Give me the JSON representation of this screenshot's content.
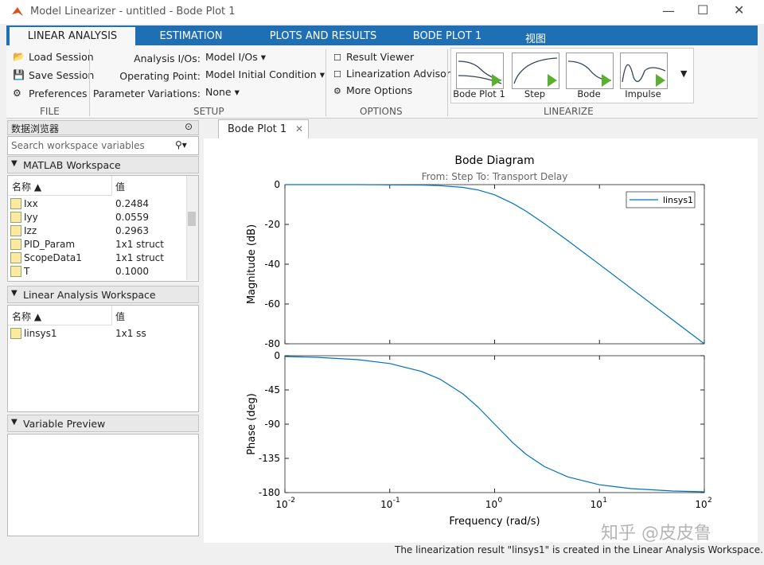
{
  "window": {
    "title": "Model Linearizer - untitled - Bode Plot 1"
  },
  "tabs": [
    "LINEAR ANALYSIS",
    "ESTIMATION",
    "PLOTS AND RESULTS",
    "BODE PLOT 1",
    "视图"
  ],
  "ribbon": {
    "file": {
      "label": "FILE",
      "items": [
        "Load Session",
        "Save Session",
        "Preferences"
      ]
    },
    "setup": {
      "label": "SETUP",
      "rows": [
        {
          "label": "Analysis I/Os:",
          "value": "Model I/Os"
        },
        {
          "label": "Operating Point:",
          "value": "Model Initial Condition"
        },
        {
          "label": "Parameter Variations:",
          "value": "None"
        }
      ]
    },
    "options": {
      "label": "OPTIONS",
      "items": [
        "Result Viewer",
        "Linearization Advisor",
        "More Options"
      ]
    },
    "linearize": {
      "label": "LINEARIZE",
      "items": [
        "Bode Plot 1",
        "Step",
        "Bode",
        "Impulse"
      ]
    }
  },
  "browser": {
    "title": "数据浏览器",
    "search": "Search workspace variables",
    "matlab_workspace": {
      "title": "MATLAB Workspace",
      "columns": [
        "名称",
        "值"
      ],
      "rows": [
        [
          "Ixx",
          "0.2484"
        ],
        [
          "Iyy",
          "0.0559"
        ],
        [
          "Izz",
          "0.2963"
        ],
        [
          "PID_Param",
          "1x1 struct"
        ],
        [
          "ScopeData1",
          "1x1 struct"
        ],
        [
          "T",
          "0.1000"
        ]
      ]
    },
    "linear_workspace": {
      "title": "Linear Analysis Workspace",
      "columns": [
        "名称",
        "值"
      ],
      "rows": [
        [
          "linsys1",
          "1x1 ss"
        ]
      ]
    },
    "preview": {
      "title": "Variable Preview"
    }
  },
  "document_tab": "Bode Plot 1",
  "chart_data": [
    {
      "type": "line",
      "title": "Bode Diagram",
      "subtitle": "From: Step  To: Transport Delay",
      "ylabel": "Magnitude (dB)",
      "x": [
        0.01,
        0.02,
        0.05,
        0.1,
        0.2,
        0.3,
        0.5,
        0.7,
        1,
        1.5,
        2,
        3,
        5,
        10,
        20,
        50,
        100
      ],
      "series": [
        {
          "name": "linsys1",
          "color": "#0072bd",
          "values": [
            0,
            0,
            0,
            -0.1,
            -0.2,
            -0.5,
            -1.4,
            -2.7,
            -5.1,
            -9.5,
            -13.4,
            -19.7,
            -28.2,
            -40.1,
            -52.1,
            -68.0,
            -80.0
          ]
        }
      ],
      "xlim": [
        0.01,
        100
      ],
      "log_x": true,
      "ylim": [
        -80,
        0
      ],
      "yticks": [
        -80,
        -60,
        -40,
        -20,
        0
      ],
      "legend": "upper right"
    },
    {
      "type": "line",
      "ylabel": "Phase (deg)",
      "xlabel": "Frequency  (rad/s)",
      "x": [
        0.01,
        0.02,
        0.05,
        0.1,
        0.2,
        0.3,
        0.5,
        0.7,
        1,
        1.5,
        2,
        3,
        5,
        10,
        20,
        50,
        100
      ],
      "series": [
        {
          "name": "linsys1",
          "color": "#0072bd",
          "values": [
            -1.0,
            -2.1,
            -5.2,
            -10.3,
            -20.6,
            -30.7,
            -50.2,
            -68.0,
            -90,
            -114.8,
            -129.8,
            -146.0,
            -159.4,
            -169.7,
            -174.8,
            -177.9,
            -179.0
          ]
        }
      ],
      "xlim": [
        0.01,
        100
      ],
      "log_x": true,
      "xticks": [
        {
          "value": 0.01,
          "label": "10",
          "exponent": "-2"
        },
        {
          "value": 0.1,
          "label": "10",
          "exponent": "-1"
        },
        {
          "value": 1,
          "label": "10",
          "exponent": "0"
        },
        {
          "value": 10,
          "label": "10",
          "exponent": "1"
        },
        {
          "value": 100,
          "label": "10",
          "exponent": "2"
        }
      ],
      "ylim": [
        -180,
        0
      ],
      "yticks": [
        -180,
        -135,
        -90,
        -45,
        0
      ]
    }
  ],
  "status": "The linearization result \"linsys1\" is created in the Linear Analysis Workspace.",
  "watermark": "知乎 @皮皮鲁"
}
